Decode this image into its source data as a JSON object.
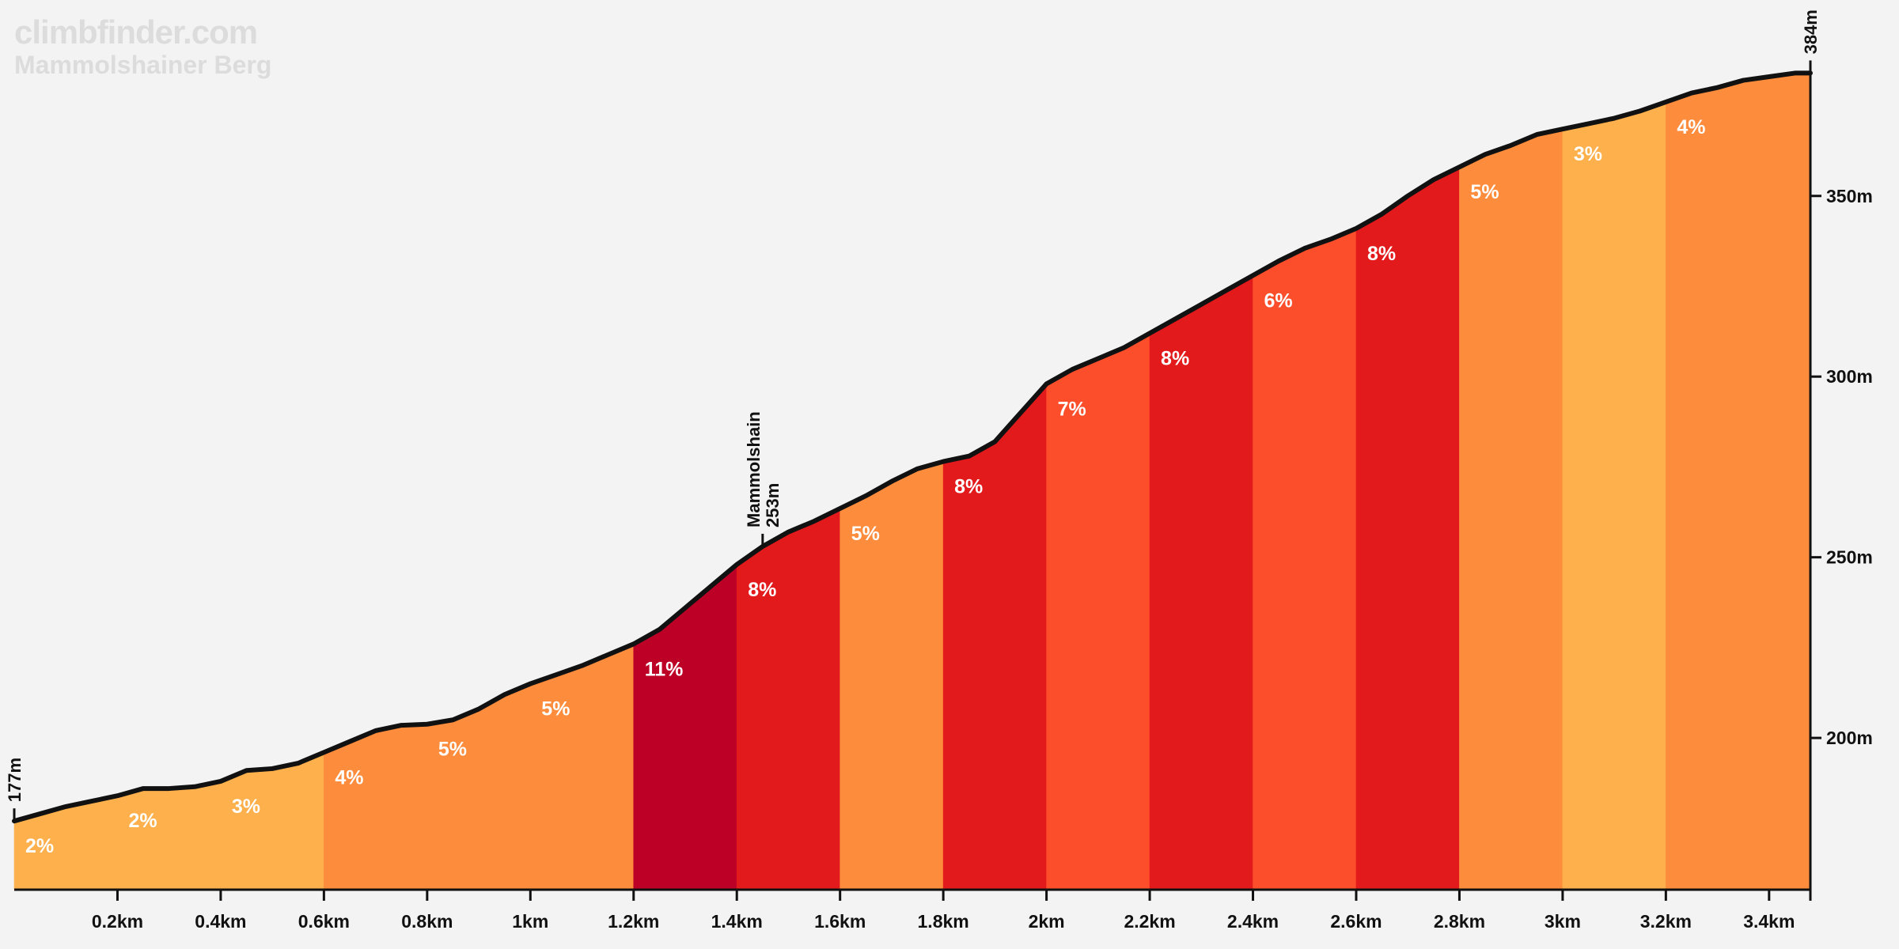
{
  "brand": {
    "site": "climbfinder.com",
    "climb_name": "Mammolshainer Berg"
  },
  "chart_data": {
    "type": "area",
    "title": "",
    "xlabel": "",
    "ylabel": "",
    "xlim": [
      0,
      3.48
    ],
    "ylim": [
      158,
      390
    ],
    "x_ticks": [
      {
        "value": 0.2,
        "label": "0.2km"
      },
      {
        "value": 0.4,
        "label": "0.4km"
      },
      {
        "value": 0.6,
        "label": "0.6km"
      },
      {
        "value": 0.8,
        "label": "0.8km"
      },
      {
        "value": 1.0,
        "label": "1km"
      },
      {
        "value": 1.2,
        "label": "1.2km"
      },
      {
        "value": 1.4,
        "label": "1.4km"
      },
      {
        "value": 1.6,
        "label": "1.6km"
      },
      {
        "value": 1.8,
        "label": "1.8km"
      },
      {
        "value": 2.0,
        "label": "2km"
      },
      {
        "value": 2.2,
        "label": "2.2km"
      },
      {
        "value": 2.4,
        "label": "2.4km"
      },
      {
        "value": 2.6,
        "label": "2.6km"
      },
      {
        "value": 2.8,
        "label": "2.8km"
      },
      {
        "value": 3.0,
        "label": "3km"
      },
      {
        "value": 3.2,
        "label": "3.2km"
      },
      {
        "value": 3.4,
        "label": "3.4km"
      }
    ],
    "y_ticks": [
      {
        "value": 200,
        "label": "200m"
      },
      {
        "value": 250,
        "label": "250m"
      },
      {
        "value": 300,
        "label": "300m"
      },
      {
        "value": 350,
        "label": "350m"
      }
    ],
    "segments": [
      {
        "start": 0.0,
        "end": 0.2,
        "gradient_label": "2%",
        "color": "#fdb04b"
      },
      {
        "start": 0.2,
        "end": 0.4,
        "gradient_label": "2%",
        "color": "#fdb04b"
      },
      {
        "start": 0.4,
        "end": 0.6,
        "gradient_label": "3%",
        "color": "#fdb04b"
      },
      {
        "start": 0.6,
        "end": 0.8,
        "gradient_label": "4%",
        "color": "#fd8c3c"
      },
      {
        "start": 0.8,
        "end": 1.0,
        "gradient_label": "5%",
        "color": "#fd8c3c"
      },
      {
        "start": 1.0,
        "end": 1.2,
        "gradient_label": "5%",
        "color": "#fd8c3c"
      },
      {
        "start": 1.2,
        "end": 1.4,
        "gradient_label": "11%",
        "color": "#bd0026"
      },
      {
        "start": 1.4,
        "end": 1.6,
        "gradient_label": "8%",
        "color": "#e31a1c"
      },
      {
        "start": 1.6,
        "end": 1.8,
        "gradient_label": "5%",
        "color": "#fd8c3c"
      },
      {
        "start": 1.8,
        "end": 2.0,
        "gradient_label": "8%",
        "color": "#e31a1c"
      },
      {
        "start": 2.0,
        "end": 2.2,
        "gradient_label": "7%",
        "color": "#fc4e2a"
      },
      {
        "start": 2.2,
        "end": 2.4,
        "gradient_label": "8%",
        "color": "#e31a1c"
      },
      {
        "start": 2.4,
        "end": 2.6,
        "gradient_label": "6%",
        "color": "#fc4e2a"
      },
      {
        "start": 2.6,
        "end": 2.8,
        "gradient_label": "8%",
        "color": "#e31a1c"
      },
      {
        "start": 2.8,
        "end": 3.0,
        "gradient_label": "5%",
        "color": "#fd8c3c"
      },
      {
        "start": 3.0,
        "end": 3.2,
        "gradient_label": "3%",
        "color": "#fdb04b"
      },
      {
        "start": 3.2,
        "end": 3.48,
        "gradient_label": "4%",
        "color": "#fd8c3c"
      }
    ],
    "profile": {
      "x": [
        0.0,
        0.05,
        0.1,
        0.15,
        0.2,
        0.25,
        0.3,
        0.35,
        0.4,
        0.45,
        0.5,
        0.55,
        0.6,
        0.65,
        0.7,
        0.75,
        0.8,
        0.85,
        0.9,
        0.95,
        1.0,
        1.05,
        1.1,
        1.15,
        1.2,
        1.25,
        1.3,
        1.35,
        1.4,
        1.45,
        1.5,
        1.55,
        1.6,
        1.65,
        1.7,
        1.75,
        1.8,
        1.85,
        1.9,
        1.95,
        2.0,
        2.05,
        2.1,
        2.15,
        2.2,
        2.25,
        2.3,
        2.35,
        2.4,
        2.45,
        2.5,
        2.55,
        2.6,
        2.65,
        2.7,
        2.75,
        2.8,
        2.85,
        2.9,
        2.95,
        3.0,
        3.05,
        3.1,
        3.15,
        3.2,
        3.25,
        3.3,
        3.35,
        3.4,
        3.45,
        3.48
      ],
      "y": [
        177,
        179,
        181,
        182.5,
        184,
        186,
        186,
        186.5,
        188,
        191,
        191.5,
        193,
        196,
        199,
        202,
        203.5,
        203.8,
        205,
        208,
        212,
        215,
        217.5,
        220,
        223,
        226,
        230,
        236,
        242,
        248,
        253,
        257,
        260,
        263.5,
        267,
        271,
        274.5,
        276.5,
        278,
        282,
        290,
        298,
        302,
        305,
        308,
        312,
        316,
        320,
        324,
        328,
        332,
        335.5,
        338,
        341,
        345,
        350,
        354.5,
        358,
        361.5,
        364,
        367,
        368.5,
        370,
        371.5,
        373.5,
        376,
        378.5,
        380,
        382,
        383,
        384,
        384
      ]
    },
    "markers": [
      {
        "x": 0.0,
        "y": 177,
        "label": "177m"
      },
      {
        "x": 1.45,
        "y": 253,
        "label": "253m",
        "name": "Mammolshain"
      },
      {
        "x": 3.48,
        "y": 384,
        "label": "384m"
      }
    ],
    "profile_line_color": "#111111",
    "grid": false,
    "legend": "none"
  }
}
